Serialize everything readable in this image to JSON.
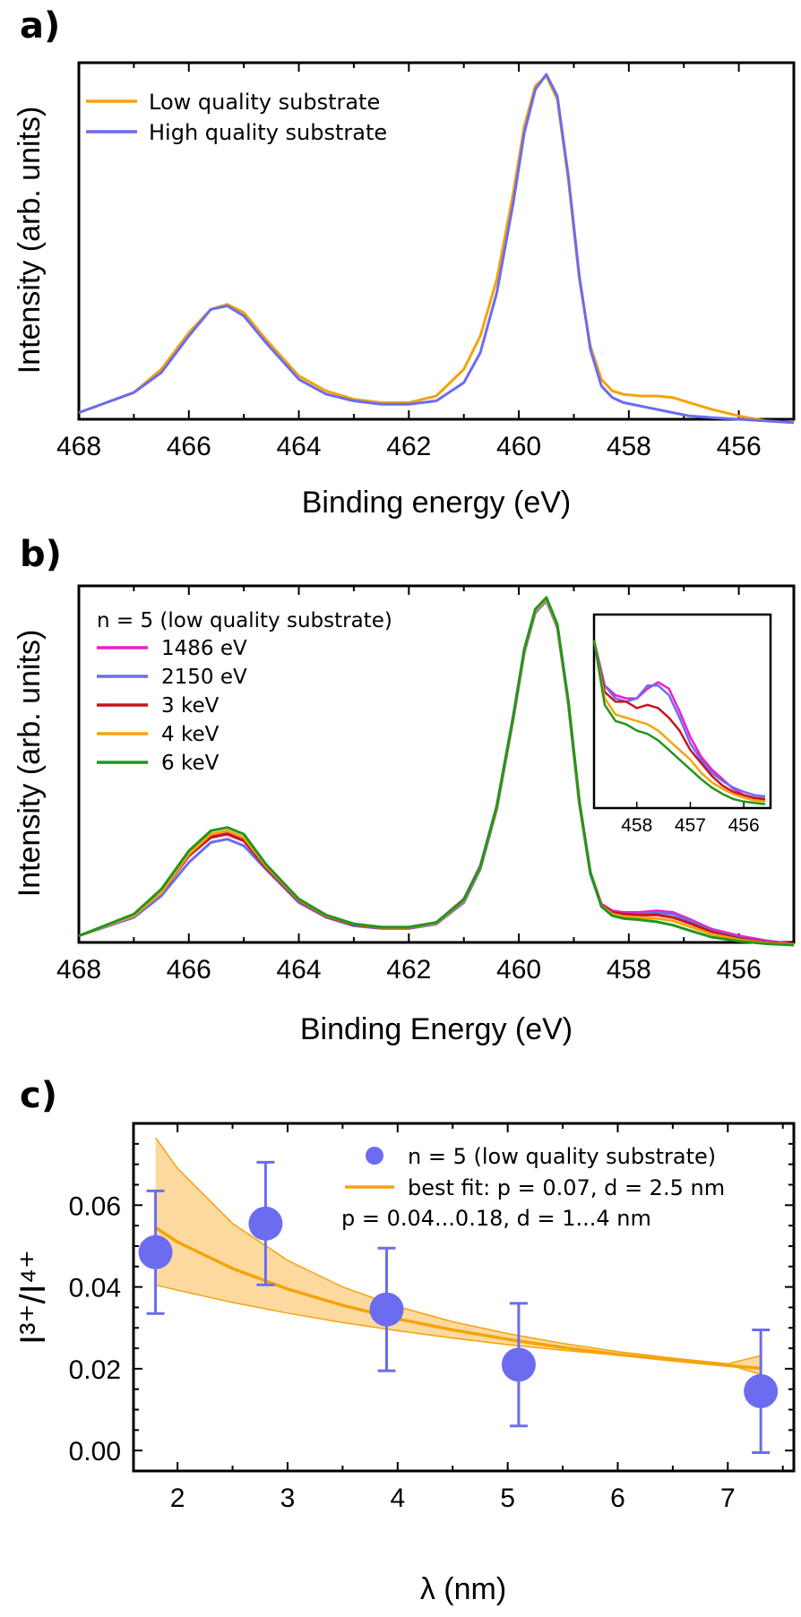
{
  "chart_data": [
    {
      "panel": "a)",
      "type": "line",
      "xlabel": "Binding energy (eV)",
      "ylabel": "Intensity (arb. units)",
      "xlim": [
        468,
        455
      ],
      "ylim": [
        0,
        1.07
      ],
      "reversed_x": true,
      "x_ticks": [
        "468",
        "466",
        "464",
        "462",
        "460",
        "458",
        "456"
      ],
      "legend_position": "top-left",
      "series": [
        {
          "name": "Low quality substrate",
          "color": "#f5a30a",
          "x": [
            468,
            467,
            466.5,
            466,
            465.6,
            465.3,
            465,
            464.6,
            464,
            463.5,
            463,
            462.5,
            462,
            461.5,
            461,
            460.7,
            460.4,
            460.1,
            459.9,
            459.7,
            459.5,
            459.3,
            459.1,
            458.9,
            458.7,
            458.5,
            458.3,
            458.1,
            457.8,
            457.5,
            457.2,
            456.9,
            456.5,
            456,
            455.5,
            455
          ],
          "y": [
            0.02,
            0.08,
            0.15,
            0.26,
            0.33,
            0.345,
            0.32,
            0.24,
            0.13,
            0.085,
            0.06,
            0.05,
            0.05,
            0.07,
            0.15,
            0.25,
            0.42,
            0.68,
            0.88,
            1.0,
            1.03,
            0.96,
            0.72,
            0.42,
            0.22,
            0.12,
            0.085,
            0.075,
            0.07,
            0.07,
            0.065,
            0.05,
            0.03,
            0.01,
            -0.005,
            -0.01
          ]
        },
        {
          "name": "High quality substrate",
          "color": "#6b6cf0",
          "x": [
            468,
            467,
            466.5,
            466,
            465.6,
            465.3,
            465,
            464.6,
            464,
            463.5,
            463,
            462.5,
            462,
            461.5,
            461,
            460.7,
            460.4,
            460.1,
            459.9,
            459.7,
            459.5,
            459.3,
            459.1,
            458.9,
            458.7,
            458.5,
            458.3,
            458.1,
            457.8,
            457.5,
            457.2,
            456.9,
            456.5,
            456,
            455.5,
            455
          ],
          "y": [
            0.02,
            0.08,
            0.14,
            0.25,
            0.33,
            0.34,
            0.31,
            0.23,
            0.12,
            0.075,
            0.055,
            0.045,
            0.045,
            0.055,
            0.11,
            0.2,
            0.38,
            0.65,
            0.86,
            0.99,
            1.035,
            0.97,
            0.73,
            0.43,
            0.21,
            0.1,
            0.065,
            0.05,
            0.04,
            0.03,
            0.02,
            0.01,
            0.005,
            0.0,
            -0.005,
            -0.01
          ]
        }
      ]
    },
    {
      "panel": "b)",
      "type": "line",
      "xlabel": "Binding Energy (eV)",
      "ylabel": "Intensity (arb. units)",
      "xlim": [
        468,
        455
      ],
      "ylim": [
        0,
        1.07
      ],
      "reversed_x": true,
      "x_ticks": [
        "468",
        "466",
        "464",
        "462",
        "460",
        "458",
        "456"
      ],
      "legend_position": "top-left",
      "legend_title": "n = 5 (low quality substrate)",
      "series": [
        {
          "name": "1486 eV",
          "color": "#f01cc8",
          "x": [
            468,
            467,
            466.5,
            466,
            465.6,
            465.3,
            465,
            464.6,
            464,
            463.5,
            463,
            462.5,
            462,
            461.5,
            461,
            460.7,
            460.4,
            460.1,
            459.9,
            459.7,
            459.5,
            459.3,
            459.1,
            458.9,
            458.7,
            458.5,
            458.3,
            458.1,
            457.8,
            457.5,
            457.2,
            456.9,
            456.5,
            456,
            455.5,
            455
          ],
          "y": [
            0.02,
            0.08,
            0.15,
            0.26,
            0.32,
            0.33,
            0.31,
            0.23,
            0.13,
            0.08,
            0.055,
            0.045,
            0.045,
            0.06,
            0.13,
            0.23,
            0.41,
            0.68,
            0.88,
            1.0,
            1.03,
            0.95,
            0.72,
            0.42,
            0.21,
            0.115,
            0.095,
            0.09,
            0.09,
            0.095,
            0.09,
            0.07,
            0.04,
            0.02,
            0.005,
            -0.005
          ]
        },
        {
          "name": "2150 eV",
          "color": "#6b6cf0",
          "x": [
            468,
            467,
            466.5,
            466,
            465.6,
            465.3,
            465,
            464.6,
            464,
            463.5,
            463,
            462.5,
            462,
            461.5,
            461,
            460.7,
            460.4,
            460.1,
            459.9,
            459.7,
            459.5,
            459.3,
            459.1,
            458.9,
            458.7,
            458.5,
            458.3,
            458.1,
            457.8,
            457.5,
            457.2,
            456.9,
            456.5,
            456,
            455.5,
            455
          ],
          "y": [
            0.02,
            0.075,
            0.14,
            0.24,
            0.3,
            0.31,
            0.29,
            0.22,
            0.12,
            0.075,
            0.05,
            0.042,
            0.042,
            0.055,
            0.12,
            0.22,
            0.4,
            0.67,
            0.87,
            0.99,
            1.025,
            0.945,
            0.715,
            0.415,
            0.205,
            0.11,
            0.09,
            0.085,
            0.085,
            0.09,
            0.085,
            0.065,
            0.035,
            0.015,
            0.0,
            -0.005
          ]
        },
        {
          "name": "3 keV",
          "color": "#c8141e",
          "x": [
            468,
            467,
            466.5,
            466,
            465.6,
            465.3,
            465,
            464.6,
            464,
            463.5,
            463,
            462.5,
            462,
            461.5,
            461,
            460.7,
            460.4,
            460.1,
            459.9,
            459.7,
            459.5,
            459.3,
            459.1,
            458.9,
            458.7,
            458.5,
            458.3,
            458.1,
            457.8,
            457.5,
            457.2,
            456.9,
            456.5,
            456,
            455.5,
            455
          ],
          "y": [
            0.02,
            0.08,
            0.15,
            0.26,
            0.315,
            0.325,
            0.305,
            0.225,
            0.125,
            0.078,
            0.053,
            0.044,
            0.044,
            0.058,
            0.125,
            0.225,
            0.405,
            0.675,
            0.875,
            0.995,
            1.03,
            0.95,
            0.72,
            0.42,
            0.21,
            0.112,
            0.09,
            0.085,
            0.082,
            0.083,
            0.075,
            0.058,
            0.032,
            0.012,
            0.0,
            -0.005
          ]
        },
        {
          "name": "4 keV",
          "color": "#f5a30a",
          "x": [
            468,
            467,
            466.5,
            466,
            465.6,
            465.3,
            465,
            464.6,
            464,
            463.5,
            463,
            462.5,
            462,
            461.5,
            461,
            460.7,
            460.4,
            460.1,
            459.9,
            459.7,
            459.5,
            459.3,
            459.1,
            458.9,
            458.7,
            458.5,
            458.3,
            458.1,
            457.8,
            457.5,
            457.2,
            456.9,
            456.5,
            456,
            455.5,
            455
          ],
          "y": [
            0.02,
            0.08,
            0.15,
            0.265,
            0.325,
            0.335,
            0.315,
            0.23,
            0.128,
            0.08,
            0.055,
            0.045,
            0.045,
            0.058,
            0.125,
            0.225,
            0.405,
            0.675,
            0.875,
            0.995,
            1.03,
            0.95,
            0.72,
            0.42,
            0.21,
            0.11,
            0.085,
            0.078,
            0.075,
            0.072,
            0.065,
            0.048,
            0.025,
            0.008,
            -0.002,
            -0.006
          ]
        },
        {
          "name": "6 keV",
          "color": "#22961e",
          "x": [
            468,
            467,
            466.5,
            466,
            465.6,
            465.3,
            465,
            464.6,
            464,
            463.5,
            463,
            462.5,
            462,
            461.5,
            461,
            460.7,
            460.4,
            460.1,
            459.9,
            459.7,
            459.5,
            459.3,
            459.1,
            458.9,
            458.7,
            458.5,
            458.3,
            458.1,
            457.8,
            457.5,
            457.2,
            456.9,
            456.5,
            456,
            455.5,
            455
          ],
          "y": [
            0.02,
            0.085,
            0.16,
            0.275,
            0.335,
            0.345,
            0.325,
            0.235,
            0.13,
            0.082,
            0.056,
            0.046,
            0.046,
            0.06,
            0.128,
            0.228,
            0.41,
            0.68,
            0.88,
            1.0,
            1.035,
            0.955,
            0.725,
            0.425,
            0.21,
            0.108,
            0.08,
            0.072,
            0.068,
            0.062,
            0.052,
            0.036,
            0.016,
            0.004,
            -0.004,
            -0.008
          ]
        }
      ],
      "inset": {
        "xlim": [
          458.8,
          455.5
        ],
        "x_ticks": [
          "458",
          "457",
          "456"
        ],
        "ylim": [
          0.0,
          0.3
        ],
        "series": [
          {
            "name": "1486 eV",
            "color": "#f01cc8",
            "x": [
              458.8,
              458.6,
              458.4,
              458.2,
              458.0,
              457.8,
              457.6,
              457.4,
              457.2,
              457.0,
              456.8,
              456.6,
              456.4,
              456.2,
              456.0,
              455.8,
              455.6
            ],
            "y": [
              0.26,
              0.19,
              0.175,
              0.17,
              0.17,
              0.185,
              0.195,
              0.185,
              0.15,
              0.11,
              0.08,
              0.06,
              0.045,
              0.03,
              0.02,
              0.015,
              0.012
            ]
          },
          {
            "name": "2150 eV",
            "color": "#6b6cf0",
            "x": [
              458.8,
              458.6,
              458.4,
              458.2,
              458.0,
              457.8,
              457.6,
              457.4,
              457.2,
              457.0,
              456.8,
              456.6,
              456.4,
              456.2,
              456.0,
              455.8,
              455.6
            ],
            "y": [
              0.26,
              0.19,
              0.17,
              0.165,
              0.17,
              0.19,
              0.19,
              0.175,
              0.14,
              0.1,
              0.075,
              0.055,
              0.042,
              0.032,
              0.025,
              0.02,
              0.018
            ]
          },
          {
            "name": "3 keV",
            "color": "#c8141e",
            "x": [
              458.8,
              458.6,
              458.4,
              458.2,
              458.0,
              457.8,
              457.6,
              457.4,
              457.2,
              457.0,
              456.8,
              456.6,
              456.4,
              456.2,
              456.0,
              455.8,
              455.6
            ],
            "y": [
              0.26,
              0.18,
              0.165,
              0.165,
              0.155,
              0.16,
              0.155,
              0.14,
              0.12,
              0.09,
              0.07,
              0.05,
              0.035,
              0.025,
              0.02,
              0.016,
              0.014
            ]
          },
          {
            "name": "4 keV",
            "color": "#f5a30a",
            "x": [
              458.8,
              458.6,
              458.4,
              458.2,
              458.0,
              457.8,
              457.6,
              457.4,
              457.2,
              457.0,
              456.8,
              456.6,
              456.4,
              456.2,
              456.0,
              455.8,
              455.6
            ],
            "y": [
              0.26,
              0.17,
              0.145,
              0.14,
              0.135,
              0.13,
              0.12,
              0.105,
              0.09,
              0.075,
              0.055,
              0.04,
              0.03,
              0.022,
              0.016,
              0.012,
              0.01
            ]
          },
          {
            "name": "6 keV",
            "color": "#22961e",
            "x": [
              458.8,
              458.6,
              458.4,
              458.2,
              458.0,
              457.8,
              457.6,
              457.4,
              457.2,
              457.0,
              456.8,
              456.6,
              456.4,
              456.2,
              456.0,
              455.8,
              455.6
            ],
            "y": [
              0.26,
              0.16,
              0.135,
              0.13,
              0.12,
              0.115,
              0.105,
              0.09,
              0.075,
              0.06,
              0.045,
              0.032,
              0.022,
              0.014,
              0.01,
              0.008,
              0.006
            ]
          }
        ]
      }
    },
    {
      "panel": "c)",
      "type": "scatter",
      "xlabel": "λ (nm)",
      "ylabel": "I³⁺/I⁴⁺",
      "xlim": [
        1.6,
        7.6
      ],
      "ylim": [
        -0.005,
        0.08
      ],
      "x_ticks": [
        "2",
        "3",
        "4",
        "5",
        "6",
        "7"
      ],
      "y_ticks": [
        "0.00",
        "0.02",
        "0.04",
        "0.06"
      ],
      "legend_position": "top-right",
      "points": {
        "name": "n = 5 (low quality substrate)",
        "color": "#6b6cf0",
        "x": [
          1.8,
          2.8,
          3.9,
          5.1,
          7.3
        ],
        "y": [
          0.0485,
          0.0555,
          0.0345,
          0.021,
          0.0145
        ],
        "err": [
          0.015,
          0.015,
          0.015,
          0.015,
          0.015
        ]
      },
      "best_fit": {
        "label": "best fit: p = 0.07, d = 2.5 nm",
        "color": "#f5a30a",
        "x": [
          1.8,
          2.0,
          2.5,
          3.0,
          3.5,
          4.0,
          4.5,
          5.0,
          5.5,
          6.0,
          6.5,
          7.0,
          7.3
        ],
        "y": [
          0.0545,
          0.051,
          0.0445,
          0.0395,
          0.0355,
          0.0322,
          0.0295,
          0.0272,
          0.0252,
          0.0235,
          0.0221,
          0.0208,
          0.0201
        ]
      },
      "band": {
        "label": "p = 0.04...0.18, d = 1...4 nm",
        "x": [
          1.8,
          2.0,
          2.5,
          3.0,
          3.5,
          4.0,
          4.5,
          5.0,
          5.5,
          6.0,
          6.5,
          7.0,
          7.3
        ],
        "upper": [
          0.0765,
          0.069,
          0.0555,
          0.0465,
          0.04,
          0.0352,
          0.0315,
          0.0286,
          0.0262,
          0.0242,
          0.0226,
          0.0212,
          0.0232
        ],
        "lower": [
          0.0405,
          0.0392,
          0.0362,
          0.0336,
          0.0313,
          0.0293,
          0.0275,
          0.0259,
          0.0245,
          0.0233,
          0.0221,
          0.021,
          0.0186
        ]
      }
    }
  ]
}
